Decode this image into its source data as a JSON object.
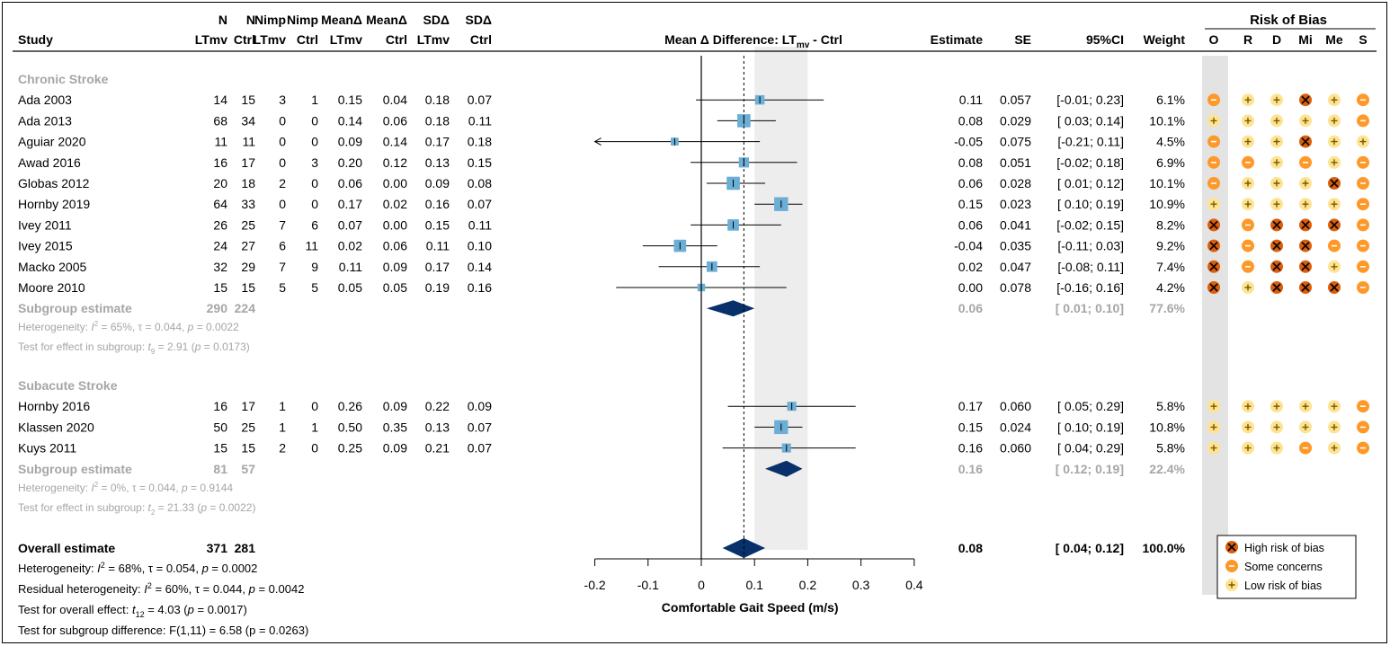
{
  "header": {
    "study": "Study",
    "cols": [
      {
        "top": "N",
        "bottom": "LTmv"
      },
      {
        "top": "N",
        "bottom": "Ctrl"
      },
      {
        "top": "Nimp",
        "bottom": "LTmv"
      },
      {
        "top": "Nimp",
        "bottom": "Ctrl"
      },
      {
        "top": "MeanΔ",
        "bottom": "LTmv"
      },
      {
        "top": "MeanΔ",
        "bottom": "Ctrl"
      },
      {
        "top": "SDΔ",
        "bottom": "LTmv"
      },
      {
        "top": "SDΔ",
        "bottom": "Ctrl"
      }
    ],
    "plot_title_pre": "Mean Δ Difference: LT",
    "plot_title_sub": "mv",
    "plot_title_post": " - Ctrl",
    "estimate": "Estimate",
    "se": "SE",
    "ci": "95%CI",
    "weight": "Weight",
    "rob_title": "Risk of Bias",
    "rob_cols": [
      "O",
      "R",
      "D",
      "Mi",
      "Me",
      "S"
    ]
  },
  "groups": [
    {
      "label": "Chronic Stroke",
      "studies": [
        {
          "name": "Ada 2003",
          "n_lt": "14",
          "n_ctrl": "15",
          "nimp_lt": "3",
          "nimp_ctrl": "1",
          "mean_lt": "0.15",
          "mean_ctrl": "0.04",
          "sd_lt": "0.18",
          "sd_ctrl": "0.07",
          "est": 0.11,
          "lo": -0.01,
          "hi": 0.23,
          "est_text": "0.11",
          "se": "0.057",
          "ci": "[-0.01; 0.23]",
          "weight_text": "6.1%",
          "weight": 6.1,
          "rob": [
            "-",
            "+",
            "+",
            "X",
            "+",
            "-"
          ]
        },
        {
          "name": "Ada 2013",
          "n_lt": "68",
          "n_ctrl": "34",
          "nimp_lt": "0",
          "nimp_ctrl": "0",
          "mean_lt": "0.14",
          "mean_ctrl": "0.06",
          "sd_lt": "0.18",
          "sd_ctrl": "0.11",
          "est": 0.08,
          "lo": 0.03,
          "hi": 0.14,
          "est_text": "0.08",
          "se": "0.029",
          "ci": "[ 0.03; 0.14]",
          "weight_text": "10.1%",
          "weight": 10.1,
          "rob": [
            "+",
            "+",
            "+",
            "+",
            "+",
            "-"
          ]
        },
        {
          "name": "Aguiar 2020",
          "n_lt": "11",
          "n_ctrl": "11",
          "nimp_lt": "0",
          "nimp_ctrl": "0",
          "mean_lt": "0.09",
          "mean_ctrl": "0.14",
          "sd_lt": "0.17",
          "sd_ctrl": "0.18",
          "est": -0.05,
          "lo": -0.21,
          "hi": 0.11,
          "est_text": "-0.05",
          "se": "0.075",
          "ci": "[-0.21; 0.11]",
          "weight_text": "4.5%",
          "weight": 4.5,
          "rob": [
            "-",
            "+",
            "+",
            "X",
            "+",
            "+"
          ]
        },
        {
          "name": "Awad 2016",
          "n_lt": "16",
          "n_ctrl": "17",
          "nimp_lt": "0",
          "nimp_ctrl": "3",
          "mean_lt": "0.20",
          "mean_ctrl": "0.12",
          "sd_lt": "0.13",
          "sd_ctrl": "0.15",
          "est": 0.08,
          "lo": -0.02,
          "hi": 0.18,
          "est_text": "0.08",
          "se": "0.051",
          "ci": "[-0.02; 0.18]",
          "weight_text": "6.9%",
          "weight": 6.9,
          "rob": [
            "-",
            "-",
            "+",
            "-",
            "+",
            "-"
          ]
        },
        {
          "name": "Globas 2012",
          "n_lt": "20",
          "n_ctrl": "18",
          "nimp_lt": "2",
          "nimp_ctrl": "0",
          "mean_lt": "0.06",
          "mean_ctrl": "0.00",
          "sd_lt": "0.09",
          "sd_ctrl": "0.08",
          "est": 0.06,
          "lo": 0.01,
          "hi": 0.12,
          "est_text": "0.06",
          "se": "0.028",
          "ci": "[ 0.01; 0.12]",
          "weight_text": "10.1%",
          "weight": 10.1,
          "rob": [
            "-",
            "+",
            "+",
            "+",
            "X",
            "-"
          ]
        },
        {
          "name": "Hornby 2019",
          "n_lt": "64",
          "n_ctrl": "33",
          "nimp_lt": "0",
          "nimp_ctrl": "0",
          "mean_lt": "0.17",
          "mean_ctrl": "0.02",
          "sd_lt": "0.16",
          "sd_ctrl": "0.07",
          "est": 0.15,
          "lo": 0.1,
          "hi": 0.19,
          "est_text": "0.15",
          "se": "0.023",
          "ci": "[ 0.10; 0.19]",
          "weight_text": "10.9%",
          "weight": 10.9,
          "rob": [
            "+",
            "+",
            "+",
            "+",
            "+",
            "-"
          ]
        },
        {
          "name": "Ivey 2011",
          "n_lt": "26",
          "n_ctrl": "25",
          "nimp_lt": "7",
          "nimp_ctrl": "6",
          "mean_lt": "0.07",
          "mean_ctrl": "0.00",
          "sd_lt": "0.15",
          "sd_ctrl": "0.11",
          "est": 0.06,
          "lo": -0.02,
          "hi": 0.15,
          "est_text": "0.06",
          "se": "0.041",
          "ci": "[-0.02; 0.15]",
          "weight_text": "8.2%",
          "weight": 8.2,
          "rob": [
            "X",
            "-",
            "X",
            "X",
            "X",
            "-"
          ]
        },
        {
          "name": "Ivey 2015",
          "n_lt": "24",
          "n_ctrl": "27",
          "nimp_lt": "6",
          "nimp_ctrl": "11",
          "mean_lt": "0.02",
          "mean_ctrl": "0.06",
          "sd_lt": "0.11",
          "sd_ctrl": "0.10",
          "est": -0.04,
          "lo": -0.11,
          "hi": 0.03,
          "est_text": "-0.04",
          "se": "0.035",
          "ci": "[-0.11; 0.03]",
          "weight_text": "9.2%",
          "weight": 9.2,
          "rob": [
            "X",
            "-",
            "X",
            "X",
            "-",
            "-"
          ]
        },
        {
          "name": "Macko 2005",
          "n_lt": "32",
          "n_ctrl": "29",
          "nimp_lt": "7",
          "nimp_ctrl": "9",
          "mean_lt": "0.11",
          "mean_ctrl": "0.09",
          "sd_lt": "0.17",
          "sd_ctrl": "0.14",
          "est": 0.02,
          "lo": -0.08,
          "hi": 0.11,
          "est_text": "0.02",
          "se": "0.047",
          "ci": "[-0.08; 0.11]",
          "weight_text": "7.4%",
          "weight": 7.4,
          "rob": [
            "X",
            "-",
            "X",
            "X",
            "+",
            "-"
          ]
        },
        {
          "name": "Moore 2010",
          "n_lt": "15",
          "n_ctrl": "15",
          "nimp_lt": "5",
          "nimp_ctrl": "5",
          "mean_lt": "0.05",
          "mean_ctrl": "0.05",
          "sd_lt": "0.19",
          "sd_ctrl": "0.16",
          "est": 0.0,
          "lo": -0.16,
          "hi": 0.16,
          "est_text": "0.00",
          "se": "0.078",
          "ci": "[-0.16; 0.16]",
          "weight_text": "4.2%",
          "weight": 4.2,
          "rob": [
            "X",
            "+",
            "X",
            "X",
            "X",
            "-"
          ]
        }
      ],
      "subgroup": {
        "label": "Subgroup estimate",
        "n_lt": "290",
        "n_ctrl": "224",
        "est": 0.06,
        "lo": 0.01,
        "hi": 0.1,
        "est_text": "0.06",
        "ci": "[ 0.01; 0.10]",
        "weight_text": "77.6%"
      },
      "het": {
        "pre": "Heterogeneity: ",
        "i": "I",
        "sup": "2",
        "rest": " = 65%, τ = 0.044, ",
        "p": "p",
        "pval": " = 0.0022"
      },
      "test": {
        "pre": "Test for effect in subgroup: ",
        "t": "t",
        "sub": "9",
        "rest": " = 2.91 (",
        "p": "p",
        "pval": " = 0.0173)"
      }
    },
    {
      "label": "Subacute Stroke",
      "studies": [
        {
          "name": "Hornby 2016",
          "n_lt": "16",
          "n_ctrl": "17",
          "nimp_lt": "1",
          "nimp_ctrl": "0",
          "mean_lt": "0.26",
          "mean_ctrl": "0.09",
          "sd_lt": "0.22",
          "sd_ctrl": "0.09",
          "est": 0.17,
          "lo": 0.05,
          "hi": 0.29,
          "est_text": "0.17",
          "se": "0.060",
          "ci": "[ 0.05; 0.29]",
          "weight_text": "5.8%",
          "weight": 5.8,
          "rob": [
            "+",
            "+",
            "+",
            "+",
            "+",
            "-"
          ]
        },
        {
          "name": "Klassen 2020",
          "n_lt": "50",
          "n_ctrl": "25",
          "nimp_lt": "1",
          "nimp_ctrl": "1",
          "mean_lt": "0.50",
          "mean_ctrl": "0.35",
          "sd_lt": "0.13",
          "sd_ctrl": "0.07",
          "est": 0.15,
          "lo": 0.1,
          "hi": 0.19,
          "est_text": "0.15",
          "se": "0.024",
          "ci": "[ 0.10; 0.19]",
          "weight_text": "10.8%",
          "weight": 10.8,
          "rob": [
            "+",
            "+",
            "+",
            "+",
            "+",
            "-"
          ]
        },
        {
          "name": "Kuys 2011",
          "n_lt": "15",
          "n_ctrl": "15",
          "nimp_lt": "2",
          "nimp_ctrl": "0",
          "mean_lt": "0.25",
          "mean_ctrl": "0.09",
          "sd_lt": "0.21",
          "sd_ctrl": "0.07",
          "est": 0.16,
          "lo": 0.04,
          "hi": 0.29,
          "est_text": "0.16",
          "se": "0.060",
          "ci": "[ 0.04; 0.29]",
          "weight_text": "5.8%",
          "weight": 5.8,
          "rob": [
            "+",
            "+",
            "+",
            "-",
            "+",
            "-"
          ]
        }
      ],
      "subgroup": {
        "label": "Subgroup estimate",
        "n_lt": "81",
        "n_ctrl": "57",
        "est": 0.16,
        "lo": 0.12,
        "hi": 0.19,
        "est_text": "0.16",
        "ci": "[ 0.12; 0.19]",
        "weight_text": "22.4%"
      },
      "het": {
        "pre": "Heterogeneity: ",
        "i": "I",
        "sup": "2",
        "rest": " = 0%, τ = 0.044, ",
        "p": "p",
        "pval": " = 0.9144"
      },
      "test": {
        "pre": "Test for effect in subgroup: ",
        "t": "t",
        "sub": "2",
        "rest": " = 21.33 (",
        "p": "p",
        "pval": " = 0.0022)"
      }
    }
  ],
  "overall": {
    "label": "Overall estimate",
    "n_lt": "371",
    "n_ctrl": "281",
    "est": 0.08,
    "lo": 0.04,
    "hi": 0.12,
    "est_text": "0.08",
    "ci": "[ 0.04; 0.12]",
    "weight_text": "100.0%",
    "het": {
      "pre": "Heterogeneity: ",
      "i": "I",
      "sup": "2",
      "rest": " = 68%, τ = 0.054, ",
      "p": "p",
      "pval": " = 0.0002"
    },
    "resid": {
      "pre": "Residual heterogeneity: ",
      "i": "I",
      "sup": "2",
      "rest": " = 60%, τ = 0.044, ",
      "p": "p",
      "pval": " = 0.0042"
    },
    "test": {
      "pre": "Test for overall effect: ",
      "t": "t",
      "sub": "12",
      "rest": " = 4.03 (",
      "p": "p",
      "pval": " = 0.0017)"
    },
    "diff": "Test for subgroup difference: F(1,11) = 6.58 (p = 0.0263)"
  },
  "legend": [
    {
      "symbol": "X",
      "label": "High risk of bias"
    },
    {
      "symbol": "-",
      "label": "Some concerns"
    },
    {
      "symbol": "+",
      "label": "Low risk of bias"
    }
  ],
  "colors": {
    "square": "#6baed6",
    "diamond": "#08306b",
    "grey_text": "#a6a6a6",
    "band": "#ededed",
    "high": "#d95f0e",
    "some": "#fe9929",
    "low": "#fee391"
  },
  "chart_data": {
    "type": "forest",
    "xlabel": "Comfortable Gait Speed (m/s)",
    "xlim": [
      -0.2,
      0.4
    ],
    "ticks": [
      -0.2,
      -0.1,
      0,
      0.1,
      0.2,
      0.3,
      0.4
    ],
    "tick_labels": [
      "-0.2",
      "-0.1",
      "0",
      "0.1",
      "0.2",
      "0.3",
      "0.4"
    ],
    "reference_line": 0,
    "overall_line": 0.08,
    "shaded_band": [
      0.1,
      0.2
    ]
  }
}
